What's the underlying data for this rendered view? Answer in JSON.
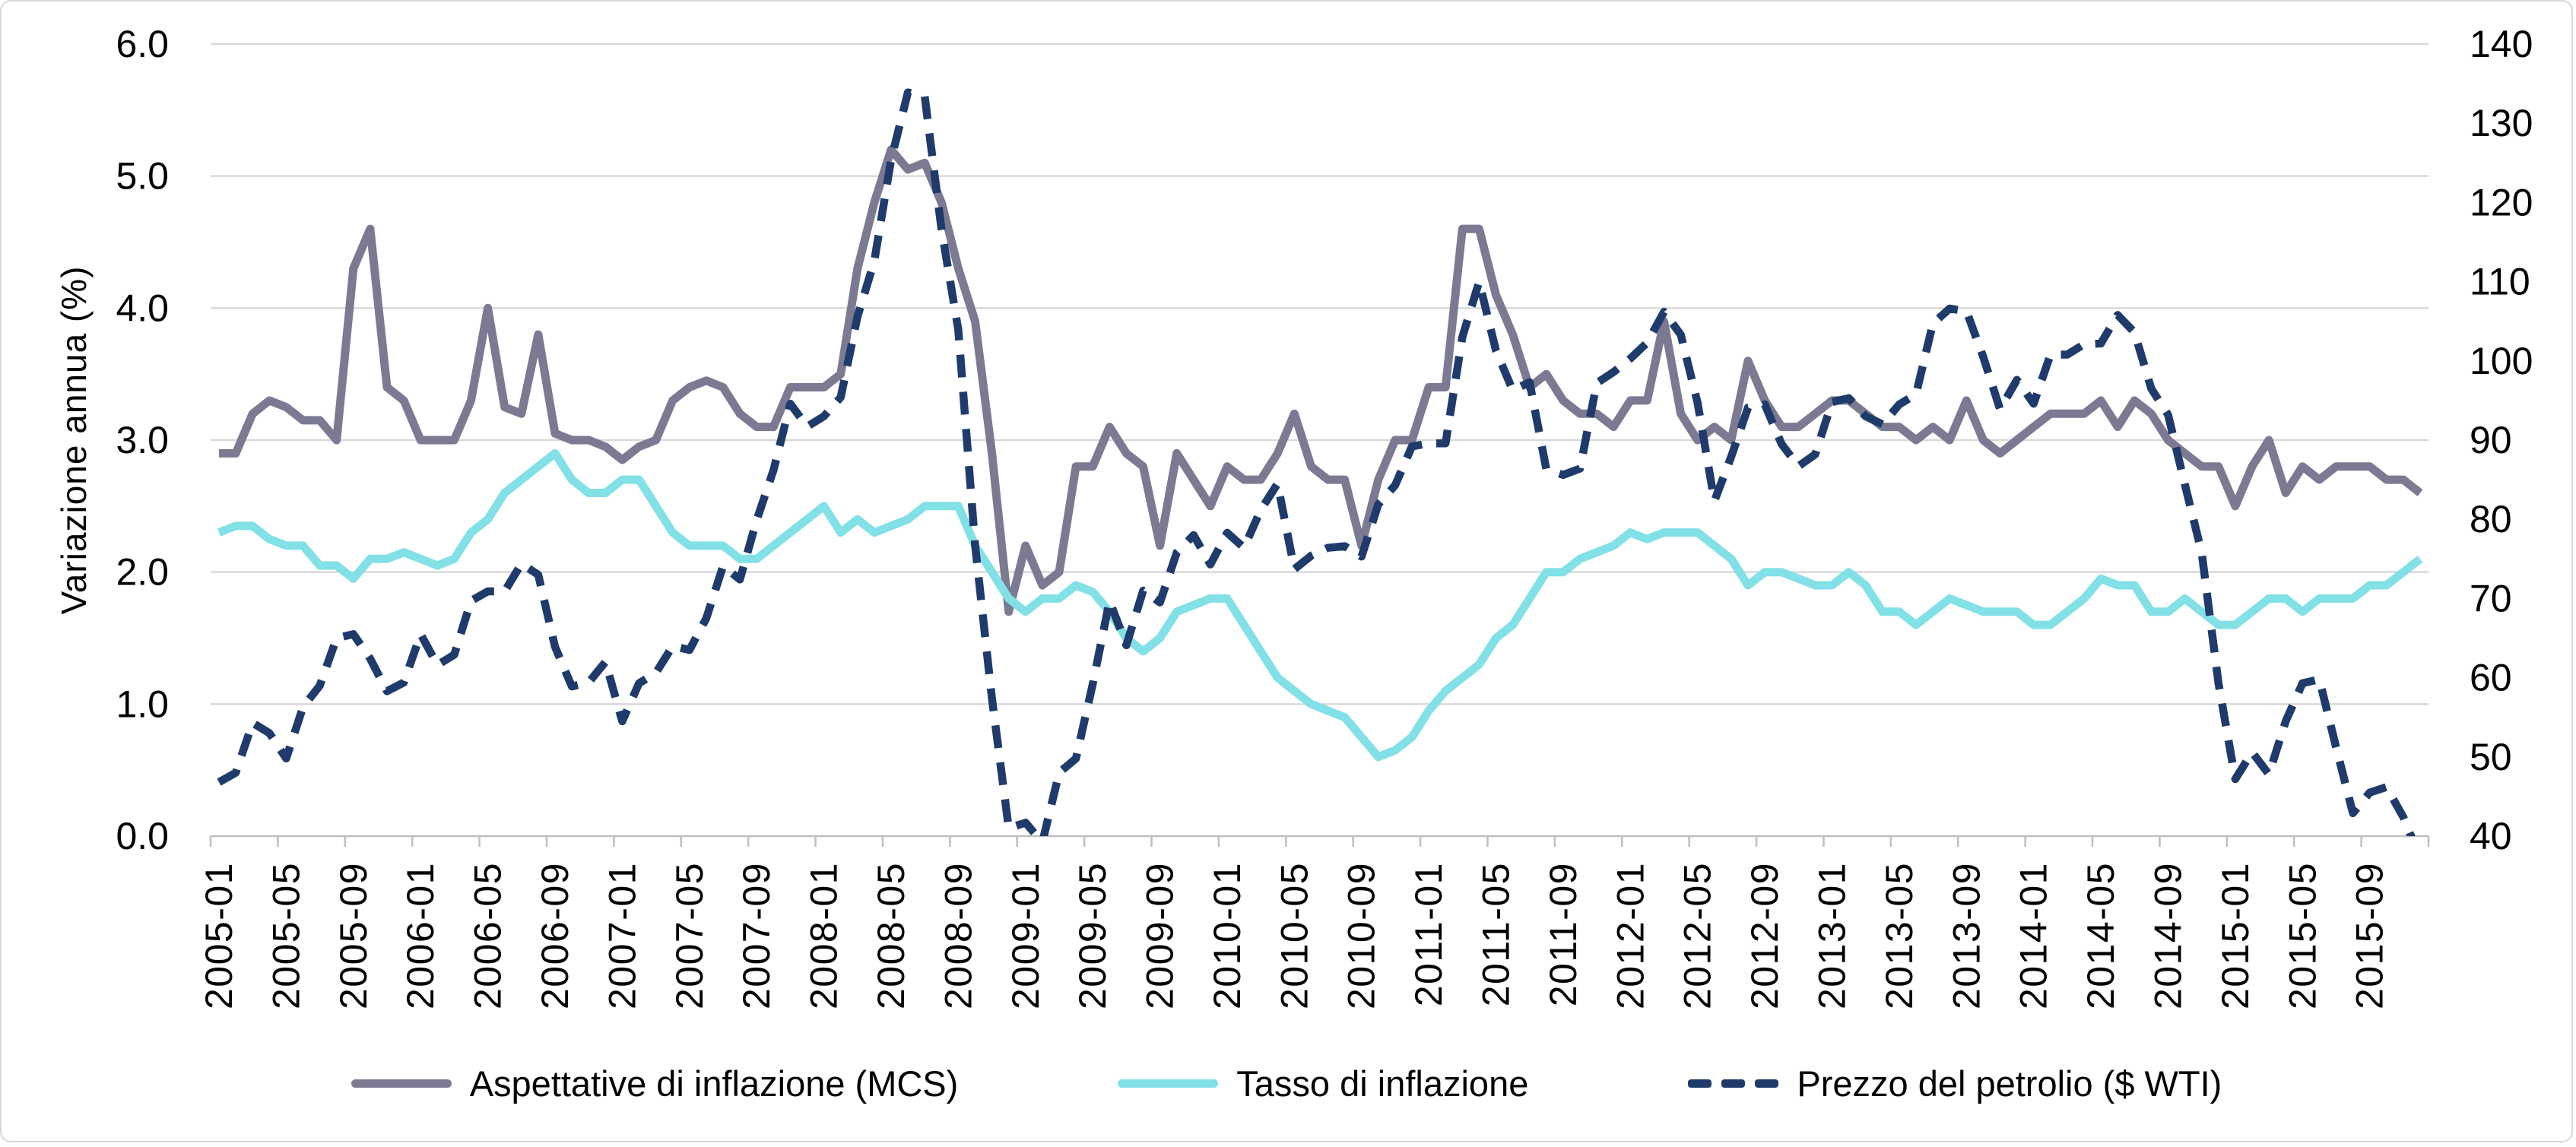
{
  "chart_data": {
    "type": "line",
    "title": "",
    "ylabel": "Variazione annua (%)",
    "xlabel": "",
    "grid": true,
    "legend_position": "bottom",
    "x_label_step": 4,
    "left_axis": {
      "min": 0,
      "max": 6,
      "step": 1,
      "decimals": 1,
      "tick_labels": [
        "0.0",
        "1.0",
        "2.0",
        "3.0",
        "4.0",
        "5.0",
        "6.0"
      ]
    },
    "right_axis": {
      "min": 40,
      "max": 140,
      "step": 10,
      "tick_labels": [
        "40",
        "50",
        "60",
        "70",
        "80",
        "90",
        "100",
        "110",
        "120",
        "130",
        "140"
      ]
    },
    "x": [
      "2005-01",
      "2005-02",
      "2005-03",
      "2005-04",
      "2005-05",
      "2005-06",
      "2005-07",
      "2005-08",
      "2005-09",
      "2005-10",
      "2005-11",
      "2005-12",
      "2006-01",
      "2006-02",
      "2006-03",
      "2006-04",
      "2006-05",
      "2006-06",
      "2006-07",
      "2006-08",
      "2006-09",
      "2006-10",
      "2006-11",
      "2006-12",
      "2007-01",
      "2007-02",
      "2007-03",
      "2007-04",
      "2007-05",
      "2007-06",
      "2007-07",
      "2007-08",
      "2007-09",
      "2007-10",
      "2007-11",
      "2007-12",
      "2008-01",
      "2008-02",
      "2008-03",
      "2008-04",
      "2008-05",
      "2008-06",
      "2008-07",
      "2008-08",
      "2008-09",
      "2008-10",
      "2008-11",
      "2008-12",
      "2009-01",
      "2009-02",
      "2009-03",
      "2009-04",
      "2009-05",
      "2009-06",
      "2009-07",
      "2009-08",
      "2009-09",
      "2009-10",
      "2009-11",
      "2009-12",
      "2010-01",
      "2010-02",
      "2010-03",
      "2010-04",
      "2010-05",
      "2010-06",
      "2010-07",
      "2010-08",
      "2010-09",
      "2010-10",
      "2010-11",
      "2010-12",
      "2011-01",
      "2011-02",
      "2011-03",
      "2011-04",
      "2011-05",
      "2011-06",
      "2011-07",
      "2011-08",
      "2011-09",
      "2011-10",
      "2011-11",
      "2011-12",
      "2012-01",
      "2012-02",
      "2012-03",
      "2012-04",
      "2012-05",
      "2012-06",
      "2012-07",
      "2012-08",
      "2012-09",
      "2012-10",
      "2012-11",
      "2012-12",
      "2013-01",
      "2013-02",
      "2013-03",
      "2013-04",
      "2013-05",
      "2013-06",
      "2013-07",
      "2013-08",
      "2013-09",
      "2013-10",
      "2013-11",
      "2013-12",
      "2014-01",
      "2014-02",
      "2014-03",
      "2014-04",
      "2014-05",
      "2014-06",
      "2014-07",
      "2014-08",
      "2014-09",
      "2014-10",
      "2014-11",
      "2014-12",
      "2015-01",
      "2015-02",
      "2015-03",
      "2015-04",
      "2015-05",
      "2015-06",
      "2015-07",
      "2015-08",
      "2015-09",
      "2015-10",
      "2015-11",
      "2015-12"
    ],
    "series": [
      {
        "name": "Aspettative di inflazione (MCS)",
        "axis": "left",
        "style": "solid",
        "color": "#7B7A92",
        "values": [
          2.9,
          2.9,
          3.2,
          3.3,
          3.25,
          3.15,
          3.15,
          3.0,
          4.3,
          4.6,
          3.4,
          3.3,
          3.0,
          3.0,
          3.0,
          3.3,
          4.0,
          3.25,
          3.2,
          3.8,
          3.05,
          3.0,
          3.0,
          2.95,
          2.85,
          2.95,
          3.0,
          3.3,
          3.4,
          3.45,
          3.4,
          3.2,
          3.1,
          3.1,
          3.4,
          3.4,
          3.4,
          3.5,
          4.3,
          4.8,
          5.2,
          5.05,
          5.1,
          4.8,
          4.3,
          3.9,
          2.9,
          1.7,
          2.2,
          1.9,
          2.0,
          2.8,
          2.8,
          3.1,
          2.9,
          2.8,
          2.2,
          2.9,
          2.7,
          2.5,
          2.8,
          2.7,
          2.7,
          2.9,
          3.2,
          2.8,
          2.7,
          2.7,
          2.2,
          2.7,
          3.0,
          3.0,
          3.4,
          3.4,
          4.6,
          4.6,
          4.1,
          3.8,
          3.4,
          3.5,
          3.3,
          3.2,
          3.2,
          3.1,
          3.3,
          3.3,
          3.9,
          3.2,
          3.0,
          3.1,
          3.0,
          3.6,
          3.3,
          3.1,
          3.1,
          3.2,
          3.3,
          3.3,
          3.2,
          3.1,
          3.1,
          3.0,
          3.1,
          3.0,
          3.3,
          3.0,
          2.9,
          3.0,
          3.1,
          3.2,
          3.2,
          3.2,
          3.3,
          3.1,
          3.3,
          3.2,
          3.0,
          2.9,
          2.8,
          2.8,
          2.5,
          2.8,
          3.0,
          2.6,
          2.8,
          2.7,
          2.8,
          2.8,
          2.8,
          2.7,
          2.7,
          2.6
        ]
      },
      {
        "name": "Tasso di inflazione",
        "axis": "left",
        "style": "solid",
        "color": "#82E0E7",
        "values": [
          2.3,
          2.35,
          2.35,
          2.25,
          2.2,
          2.2,
          2.05,
          2.05,
          1.95,
          2.1,
          2.1,
          2.15,
          2.1,
          2.05,
          2.1,
          2.3,
          2.4,
          2.6,
          2.7,
          2.8,
          2.9,
          2.7,
          2.6,
          2.6,
          2.7,
          2.7,
          2.5,
          2.3,
          2.2,
          2.2,
          2.2,
          2.1,
          2.1,
          2.2,
          2.3,
          2.4,
          2.5,
          2.3,
          2.4,
          2.3,
          2.35,
          2.4,
          2.5,
          2.5,
          2.5,
          2.2,
          2.0,
          1.8,
          1.7,
          1.8,
          1.8,
          1.9,
          1.85,
          1.7,
          1.5,
          1.4,
          1.5,
          1.7,
          1.75,
          1.8,
          1.8,
          1.6,
          1.4,
          1.2,
          1.1,
          1.0,
          0.95,
          0.9,
          0.75,
          0.6,
          0.65,
          0.75,
          0.95,
          1.1,
          1.2,
          1.3,
          1.5,
          1.6,
          1.8,
          2.0,
          2.0,
          2.1,
          2.15,
          2.2,
          2.3,
          2.25,
          2.3,
          2.3,
          2.3,
          2.2,
          2.1,
          1.9,
          2.0,
          2.0,
          1.95,
          1.9,
          1.9,
          2.0,
          1.9,
          1.7,
          1.7,
          1.6,
          1.7,
          1.8,
          1.75,
          1.7,
          1.7,
          1.7,
          1.6,
          1.6,
          1.7,
          1.8,
          1.95,
          1.9,
          1.9,
          1.7,
          1.7,
          1.8,
          1.7,
          1.6,
          1.6,
          1.7,
          1.8,
          1.8,
          1.7,
          1.8,
          1.8,
          1.8,
          1.9,
          1.9,
          2.0,
          2.1
        ]
      },
      {
        "name": "Prezzo del petrolio ($ WTI)",
        "axis": "right",
        "style": "dashed",
        "color": "#1F3B6B",
        "values": [
          46.8,
          48.0,
          54.3,
          53.0,
          49.8,
          56.3,
          59.0,
          65.0,
          65.5,
          62.4,
          58.3,
          59.4,
          65.5,
          61.6,
          62.9,
          69.7,
          70.9,
          70.9,
          74.4,
          73.0,
          63.9,
          58.9,
          59.4,
          62.0,
          54.5,
          59.3,
          60.6,
          64.0,
          63.5,
          67.5,
          74.1,
          72.4,
          79.9,
          86.2,
          94.6,
          91.7,
          93.0,
          95.4,
          105.6,
          112.6,
          125.4,
          133.9,
          133.4,
          116.6,
          103.9,
          76.7,
          57.4,
          41.0,
          41.7,
          39.2,
          48.0,
          49.8,
          59.2,
          69.7,
          64.1,
          71.0,
          69.5,
          75.8,
          78.0,
          74.3,
          78.3,
          76.4,
          81.2,
          84.5,
          73.7,
          75.4,
          76.4,
          76.6,
          75.3,
          81.9,
          84.3,
          89.2,
          89.6,
          89.6,
          103.0,
          110.0,
          101.3,
          96.3,
          97.3,
          86.3,
          85.6,
          86.4,
          97.2,
          98.6,
          100.3,
          102.3,
          106.2,
          103.3,
          94.7,
          82.3,
          87.9,
          94.1,
          94.5,
          89.5,
          86.7,
          88.2,
          94.8,
          95.3,
          93.0,
          92.0,
          94.5,
          95.8,
          104.7,
          106.6,
          106.3,
          100.5,
          93.9,
          97.6,
          94.6,
          100.8,
          100.8,
          102.1,
          102.2,
          105.8,
          103.6,
          96.5,
          93.2,
          84.4,
          75.8,
          59.3,
          47.2,
          50.6,
          47.8,
          54.5,
          59.3,
          59.8,
          51.2,
          42.9,
          45.5,
          46.2,
          42.4,
          37.2
        ]
      }
    ]
  }
}
